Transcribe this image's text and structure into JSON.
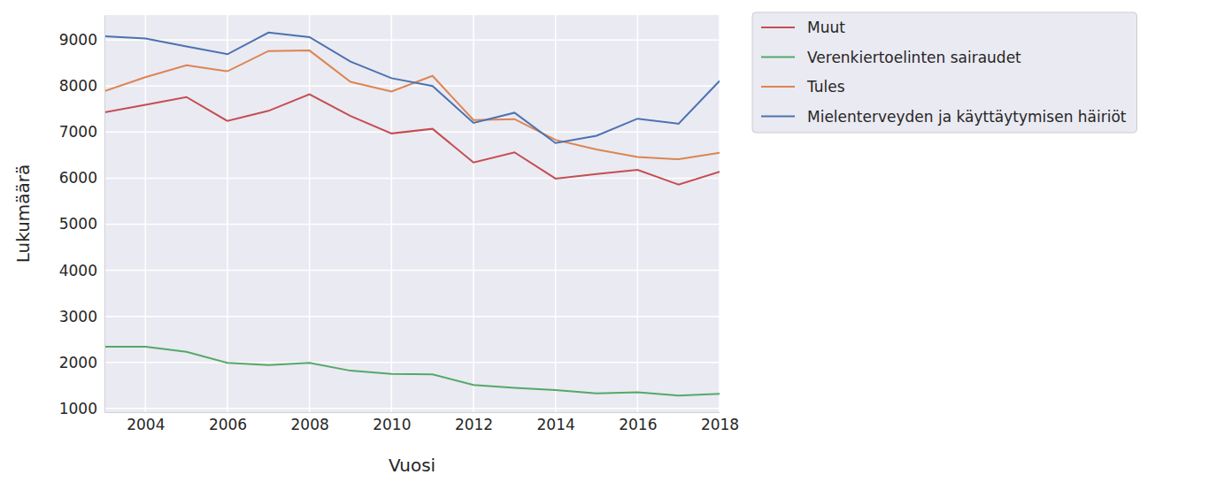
{
  "chart_data": {
    "type": "line",
    "x_label": "Vuosi",
    "y_label": "Lukumäärä",
    "x": [
      2003,
      2004,
      2005,
      2006,
      2007,
      2008,
      2009,
      2010,
      2011,
      2012,
      2013,
      2014,
      2015,
      2016,
      2017,
      2018
    ],
    "series": [
      {
        "name": "Muut",
        "color": "#c44e52",
        "values": [
          7430,
          7590,
          7760,
          7240,
          7460,
          7820,
          7350,
          6970,
          7070,
          6340,
          6560,
          5990,
          6090,
          6180,
          5860,
          6140
        ]
      },
      {
        "name": "Verenkiertoelinten sairaudet",
        "color": "#55a868",
        "values": [
          2340,
          2340,
          2230,
          1990,
          1940,
          1990,
          1820,
          1750,
          1740,
          1510,
          1450,
          1400,
          1330,
          1350,
          1280,
          1320
        ]
      },
      {
        "name": "Tules",
        "color": "#dd8452",
        "values": [
          7890,
          8190,
          8450,
          8320,
          8760,
          8770,
          8090,
          7880,
          8220,
          7260,
          7280,
          6830,
          6620,
          6460,
          6410,
          6550
        ]
      },
      {
        "name": "Mielenterveyden ja käyttäytymisen häiriöt",
        "color": "#4c72b0",
        "values": [
          9080,
          9030,
          8860,
          8690,
          9160,
          9060,
          8530,
          8170,
          8000,
          7200,
          7420,
          6760,
          6920,
          7290,
          7180,
          8110
        ]
      }
    ],
    "xlim": [
      2003,
      2018
    ],
    "xticks": [
      2004,
      2006,
      2008,
      2010,
      2012,
      2014,
      2016,
      2018
    ],
    "ylim": [
      920,
      9540
    ],
    "yticks": [
      1000,
      2000,
      3000,
      4000,
      5000,
      6000,
      7000,
      8000,
      9000
    ],
    "grid": true,
    "legend": "right"
  }
}
